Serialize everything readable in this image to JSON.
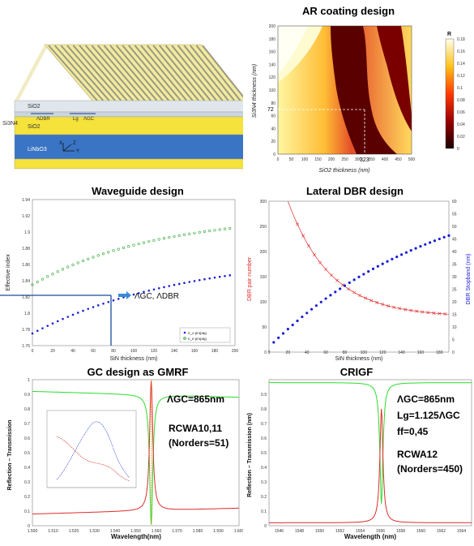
{
  "colors": {
    "blue": "#1a1fd6",
    "green": "#35a83a",
    "red": "#e02b2b",
    "grn_line": "#2bdc2b",
    "yellow": "#f2e01a",
    "teal": "#3a6ea8"
  },
  "device": {
    "labels": {
      "sio2_top": "SiO2",
      "si3n4": "Si3N4",
      "sio2_mid": "SiO2",
      "linbo3": "LiNbO3",
      "dbr": "ΛDBR",
      "lg": "Lg",
      "gc": "ΛGC",
      "x": "X",
      "z": "Z",
      "y": "Y"
    }
  },
  "ar": {
    "title": "AR coating design",
    "xlabel": "SiO2 thickness (nm)",
    "ylabel": "Si3N4 thickness (nm)",
    "marker_y": "72",
    "marker_x": "323",
    "colorbar_label": "R",
    "xticks": [
      "0",
      "50",
      "100",
      "150",
      "200",
      "250",
      "300",
      "350",
      "400",
      "450",
      "500"
    ],
    "yticks": [
      "0",
      "20",
      "40",
      "60",
      "80",
      "100",
      "120",
      "140",
      "160",
      "180",
      "200"
    ],
    "cbticks": [
      "0",
      "0.02",
      "0.04",
      "0.06",
      "0.08",
      "0.1",
      "0.12",
      "0.14",
      "0.16",
      "0.18"
    ]
  },
  "wg": {
    "title": "Waveguide design",
    "xlabel": "SiN thickness (nm)",
    "ylabel": "Effective index",
    "annot": "ΛGC, ΛDBR",
    "legend": [
      "n_o propag",
      "n_e propag"
    ],
    "xticks": [
      "0",
      "20",
      "40",
      "60",
      "80",
      "100",
      "120",
      "140",
      "160",
      "180",
      "200"
    ],
    "yticks": [
      "1.76",
      "1.78",
      "1.8",
      "1.82",
      "1.84",
      "1.86",
      "1.88",
      "1.9",
      "1.92",
      "1.94"
    ]
  },
  "dbr": {
    "title": "Lateral DBR design",
    "xlabel": "SiN thickness (nm)",
    "ylabel_left": "DBR pair number",
    "ylabel_right": "DBR Stopband (nm)",
    "xticks": [
      "0",
      "20",
      "40",
      "60",
      "80",
      "100",
      "120",
      "140",
      "160",
      "180"
    ],
    "yticks_left": [
      "0",
      "50",
      "100",
      "150",
      "200",
      "250",
      "300"
    ],
    "yticks_right": [
      "0",
      "5",
      "10",
      "15",
      "20",
      "25",
      "30",
      "35",
      "40",
      "45",
      "50",
      "55",
      "60"
    ]
  },
  "gc": {
    "title": "GC design as GMRF",
    "xlabel": "Wavelength(nm)",
    "ylabel": "Reflection – Transmission",
    "period": "ΛGC=865nm",
    "rcwa": "RCWA10,11",
    "orders": "(Norders=51)",
    "xticks": [
      "1.500",
      "1.510",
      "1.520",
      "1.530",
      "1.540",
      "1.550",
      "1.560",
      "1.570",
      "1.580",
      "1.590",
      "1.600"
    ],
    "yticks": [
      "0",
      "0.1",
      "0.2",
      "0.3",
      "0.4",
      "0.5",
      "0.6",
      "0.7",
      "0.8",
      "0.9",
      "1"
    ]
  },
  "crigf": {
    "title": "CRIGF",
    "xlabel": "Wavelength (nm)",
    "ylabel": "Reflection – Transmission (nm)",
    "period": "ΛGC=865nm",
    "lg": "Lg=1.125ΛGC",
    "ff": "ff=0,45",
    "rcwa": "RCWA12",
    "orders": "(Norders=450)",
    "xticks": [
      "1546",
      "1548",
      "1550",
      "1552",
      "1554",
      "1556",
      "1558",
      "1560",
      "1562",
      "1564"
    ],
    "yticks": [
      "0",
      "0.1",
      "0.2",
      "0.3",
      "0.4",
      "0.5",
      "0.6",
      "0.7",
      "0.8",
      "0.9"
    ]
  }
}
